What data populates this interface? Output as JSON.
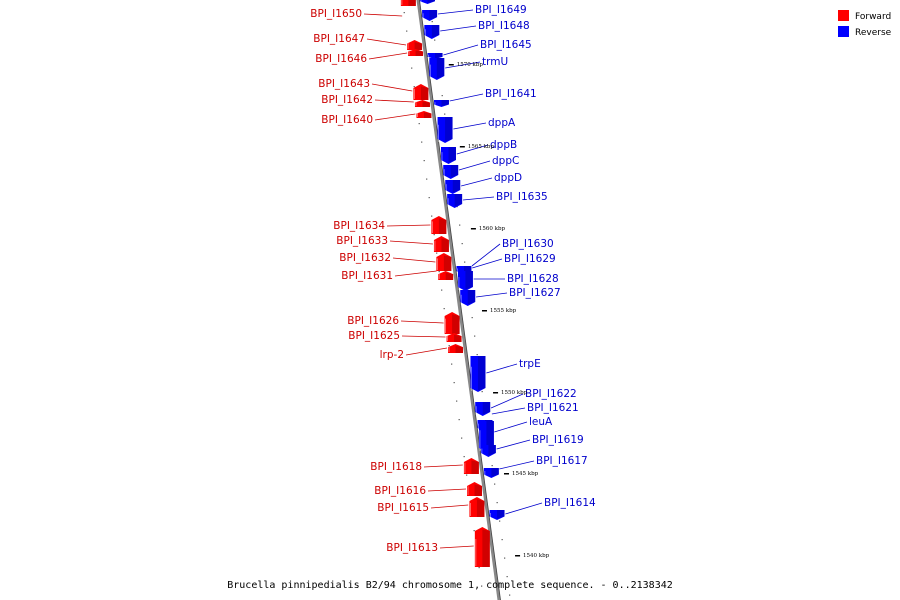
{
  "caption": "Brucella pinnipedialis B2/94 chromosome 1, complete sequence. - 0..2138342",
  "legend": [
    {
      "label": "Forward",
      "color": "#ff0000"
    },
    {
      "label": "Reverse",
      "color": "#0000ff"
    }
  ],
  "colors": {
    "forward": "#ff0000",
    "reverse": "#0000ff",
    "backbone": "#888888"
  },
  "scale_marks": [
    "1570 kbp",
    "1565 kbp",
    "1560 kbp",
    "1555 kbp",
    "1550 kbp",
    "1545 kbp",
    "1540 kbp"
  ],
  "genes_forward": [
    "BPI_I1650",
    "BPI_I1647",
    "BPI_I1646",
    "BPI_I1643",
    "BPI_I1642",
    "BPI_I1640",
    "BPI_I1634",
    "BPI_I1633",
    "BPI_I1632",
    "BPI_I1631",
    "BPI_I1626",
    "BPI_I1625",
    "lrp-2",
    "BPI_I1618",
    "BPI_I1616",
    "BPI_I1615",
    "BPI_I1613"
  ],
  "genes_reverse": [
    "BPI_I1649",
    "BPI_I1648",
    "BPI_I1645",
    "trmU",
    "BPI_I1641",
    "dppA",
    "dppB",
    "dppC",
    "dppD",
    "BPI_I1635",
    "BPI_I1630",
    "BPI_I1629",
    "BPI_I1628",
    "BPI_I1627",
    "trpE",
    "BPI_I1622",
    "BPI_I1621",
    "leuA",
    "BPI_I1619",
    "BPI_I1617",
    "BPI_I1614"
  ]
}
